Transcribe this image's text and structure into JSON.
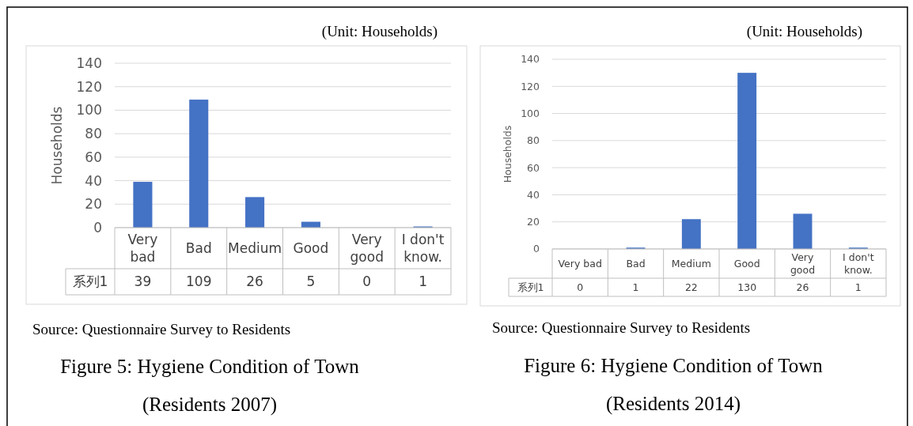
{
  "chart_data": [
    {
      "type": "bar",
      "title": "Figure 5: Hygiene Condition of Town (Residents 2007)",
      "subtitle": "(Unit: Households)",
      "ylabel": "Households",
      "categories": [
        "Very bad",
        "Bad",
        "Medium",
        "Good",
        "Very good",
        "I don't know."
      ],
      "series": [
        {
          "name": "系列1",
          "color": "#4472c4",
          "values": [
            39,
            109,
            26,
            5,
            0,
            1
          ]
        }
      ],
      "ylim": [
        0,
        140
      ],
      "yticks": [
        0,
        20,
        40,
        60,
        80,
        100,
        120,
        140
      ],
      "grid": "y",
      "data_labels": true,
      "annotations": [
        "Source: Questionnaire Survey to Residents"
      ]
    },
    {
      "type": "bar",
      "title": "Figure 6: Hygiene Condition of Town (Residents 2014)",
      "subtitle": "(Unit: Households)",
      "ylabel": "Households",
      "categories": [
        "Very bad",
        "Bad",
        "Medium",
        "Good",
        "Very good",
        "I don't know."
      ],
      "series": [
        {
          "name": "系列1",
          "color": "#4472c4",
          "values": [
            0,
            1,
            22,
            130,
            26,
            1
          ]
        }
      ],
      "ylim": [
        0,
        140
      ],
      "yticks": [
        0,
        20,
        40,
        60,
        80,
        100,
        120,
        140
      ],
      "grid": "y",
      "data_labels": true,
      "annotations": [
        "Source: Questionnaire Survey to Residents"
      ]
    }
  ]
}
